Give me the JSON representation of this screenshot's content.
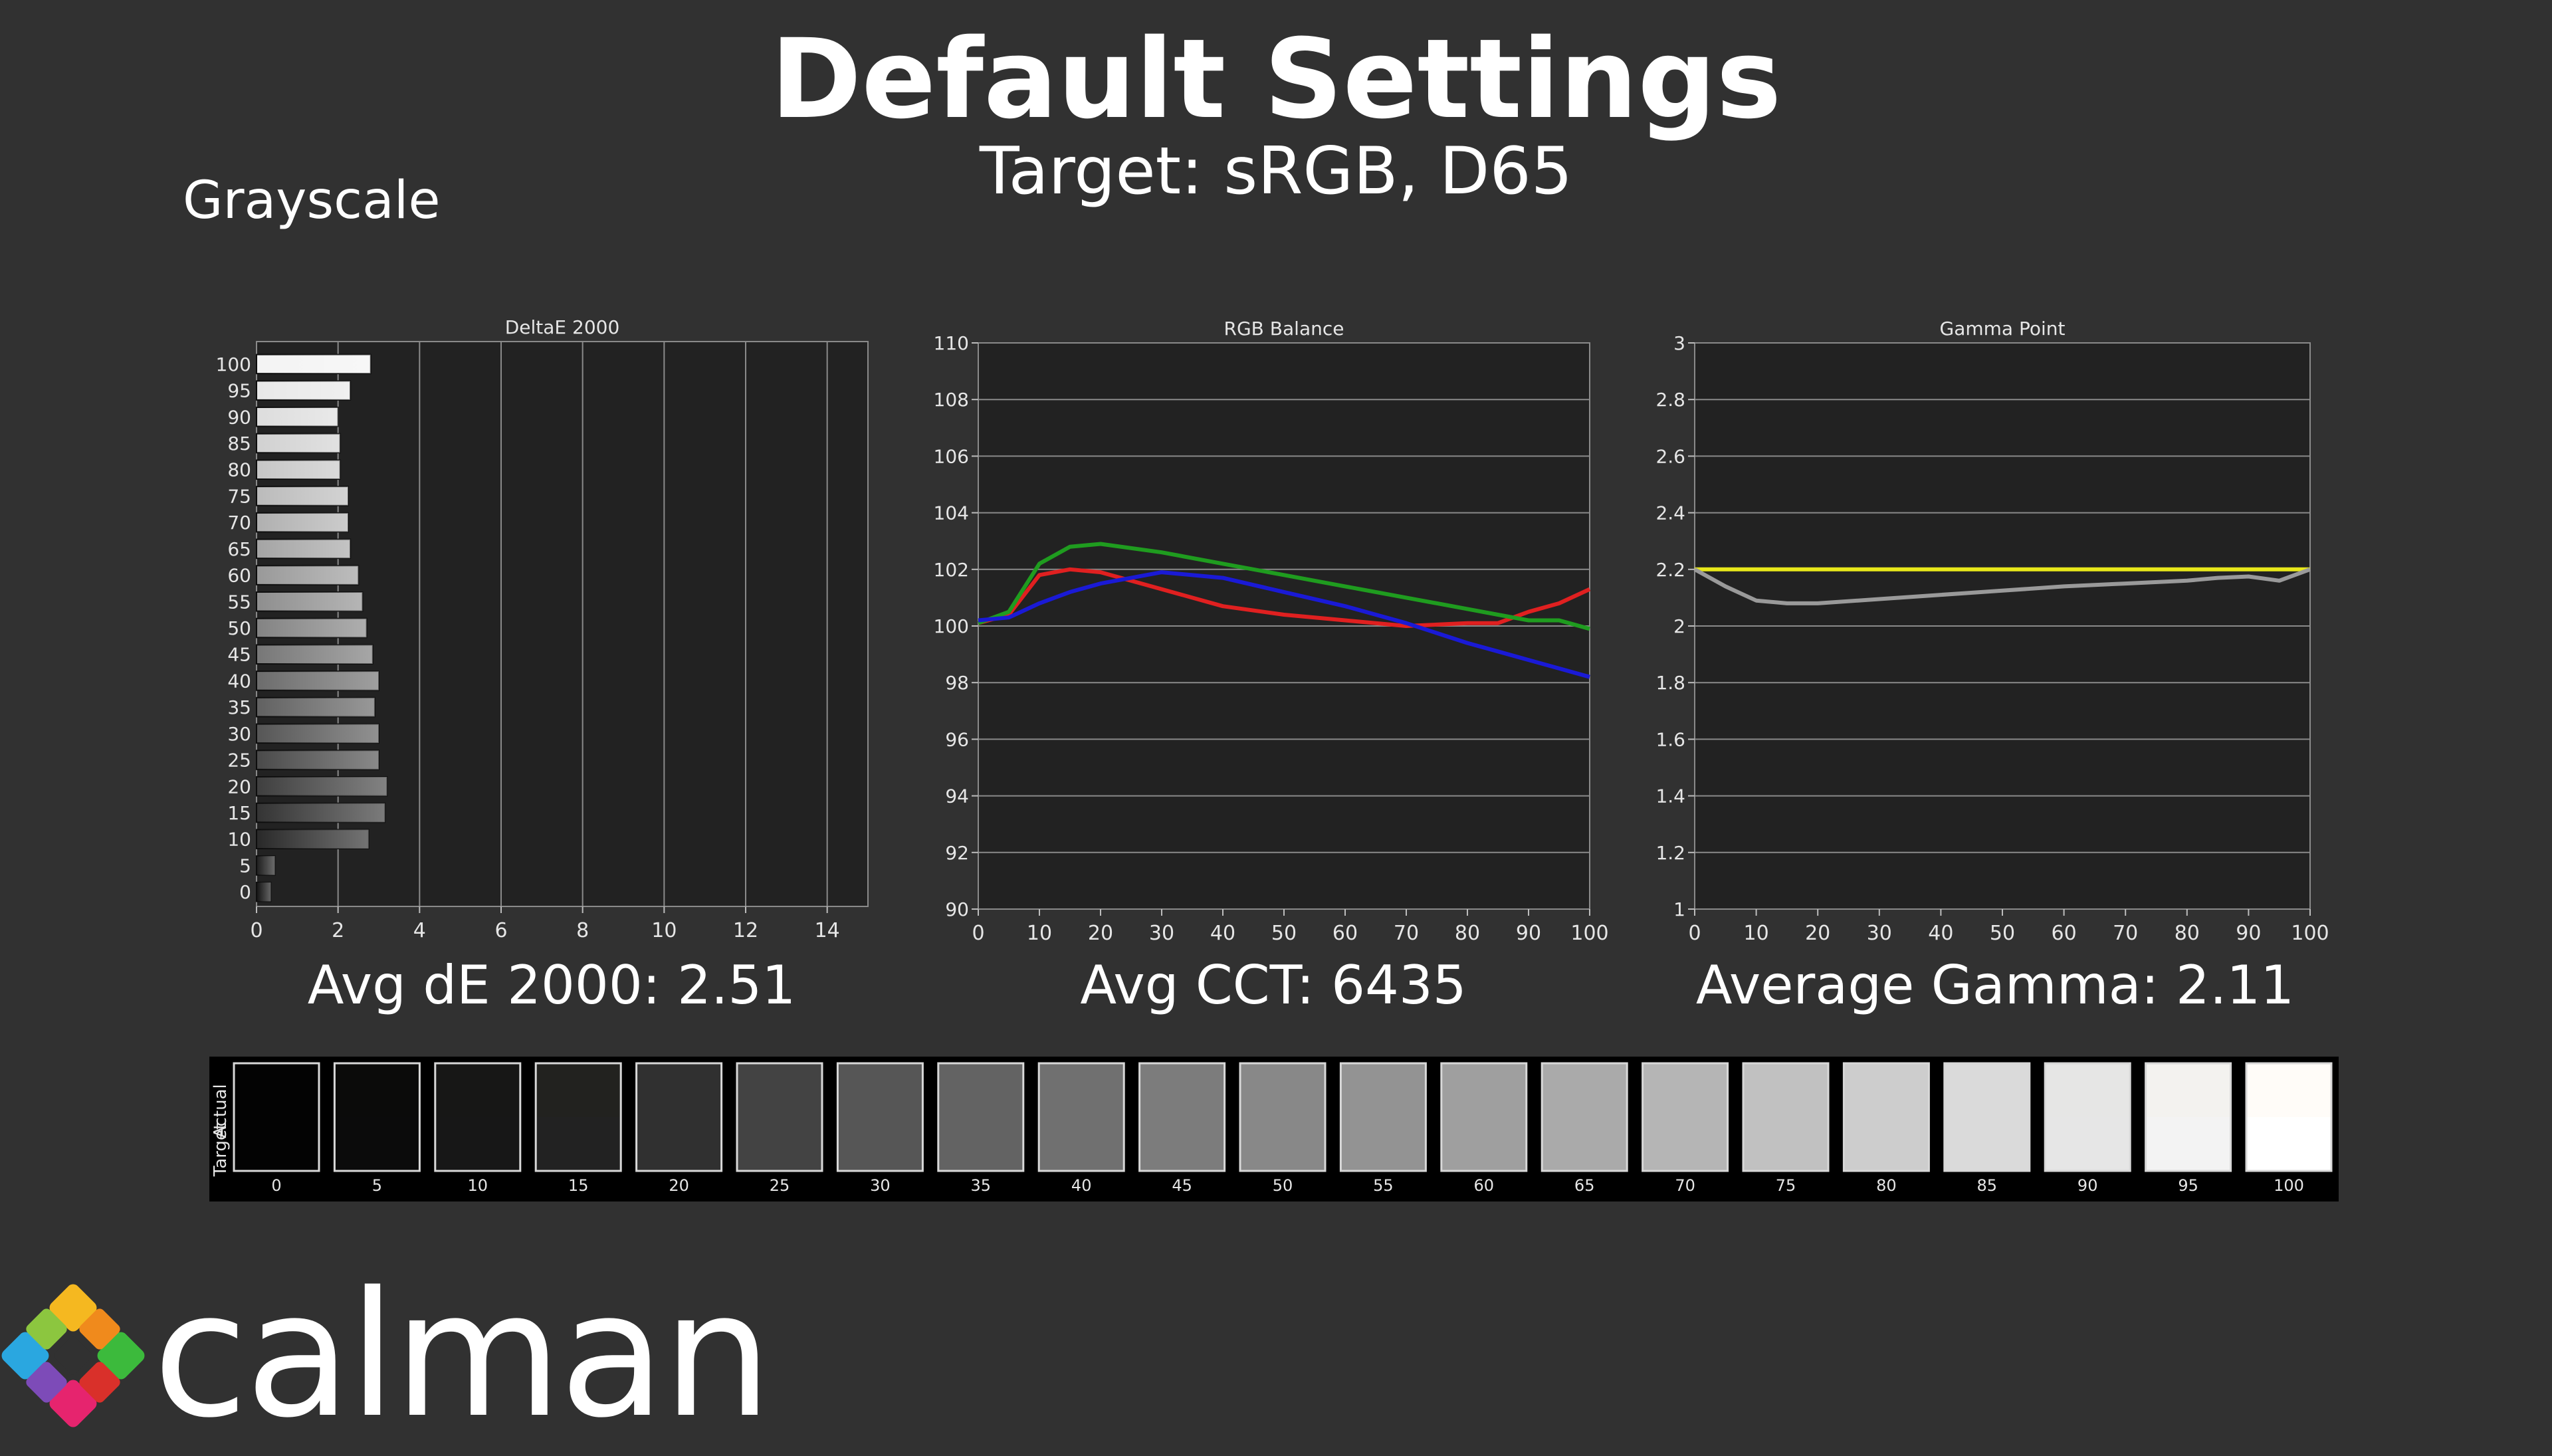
{
  "page": {
    "title": "Default Settings",
    "subtitle": "Target: sRGB, D65",
    "section": "Grayscale",
    "brand": "calman"
  },
  "summary": {
    "deltae": "Avg dE 2000: 2.51",
    "cct": "Avg CCT: 6435",
    "gamma": "Average Gamma: 2.11"
  },
  "colors": {
    "background": "#313131",
    "plot_bg": "#222222",
    "red": "#e02020",
    "green": "#1f9c1f",
    "blue": "#1a1ad6",
    "target_gamma": "#e8e81a",
    "measured_gamma": "#9a9a9a"
  },
  "chart_data": [
    {
      "type": "bar",
      "orientation": "horizontal",
      "title": "DeltaE 2000",
      "categories": [
        "100",
        "95",
        "90",
        "85",
        "80",
        "75",
        "70",
        "65",
        "60",
        "55",
        "50",
        "45",
        "40",
        "35",
        "30",
        "25",
        "20",
        "15",
        "10",
        "5",
        "0"
      ],
      "values": [
        2.8,
        2.3,
        2.0,
        2.05,
        2.05,
        2.25,
        2.25,
        2.3,
        2.5,
        2.6,
        2.7,
        2.85,
        3.0,
        2.9,
        3.0,
        3.0,
        3.2,
        3.15,
        2.75,
        0.45,
        0.35
      ],
      "xlim": [
        0,
        15
      ],
      "xticks": [
        "0",
        "2",
        "4",
        "6",
        "8",
        "10",
        "12",
        "14"
      ],
      "grid": true
    },
    {
      "type": "line",
      "title": "RGB Balance",
      "x": [
        0,
        5,
        10,
        15,
        20,
        30,
        40,
        50,
        60,
        70,
        80,
        85,
        90,
        95,
        100
      ],
      "series": [
        {
          "color": "red",
          "values": [
            100.1,
            100.4,
            101.8,
            102.0,
            101.9,
            101.3,
            100.7,
            100.4,
            100.2,
            100.0,
            100.1,
            100.1,
            100.5,
            100.8,
            101.3
          ]
        },
        {
          "color": "green",
          "values": [
            100.1,
            100.5,
            102.2,
            102.8,
            102.9,
            102.6,
            102.2,
            101.8,
            101.4,
            101.0,
            100.6,
            100.4,
            100.2,
            100.2,
            99.9
          ]
        },
        {
          "color": "blue",
          "values": [
            100.2,
            100.3,
            100.8,
            101.2,
            101.5,
            101.9,
            101.7,
            101.2,
            100.7,
            100.1,
            99.4,
            99.1,
            98.8,
            98.5,
            98.2
          ]
        }
      ],
      "ylim": [
        90,
        110
      ],
      "yticks": [
        "90",
        "92",
        "94",
        "96",
        "98",
        "100",
        "102",
        "104",
        "106",
        "108",
        "110"
      ],
      "xticks": [
        "0",
        "10",
        "20",
        "30",
        "40",
        "50",
        "60",
        "70",
        "80",
        "90",
        "100"
      ],
      "grid": true
    },
    {
      "type": "line",
      "title": "Gamma Point",
      "x": [
        0,
        5,
        10,
        15,
        20,
        30,
        40,
        50,
        60,
        70,
        80,
        85,
        90,
        95,
        100
      ],
      "series": [
        {
          "color": "target",
          "values": [
            2.2,
            2.2,
            2.2,
            2.2,
            2.2,
            2.2,
            2.2,
            2.2,
            2.2,
            2.2,
            2.2,
            2.2,
            2.2,
            2.2,
            2.2
          ]
        },
        {
          "color": "measured",
          "values": [
            2.2,
            2.14,
            2.09,
            2.08,
            2.08,
            2.095,
            2.11,
            2.125,
            2.14,
            2.15,
            2.16,
            2.17,
            2.175,
            2.16,
            2.2
          ]
        }
      ],
      "ylim": [
        1,
        3
      ],
      "yticks": [
        "1",
        "1.2",
        "1.4",
        "1.6",
        "1.8",
        "2",
        "2.2",
        "2.4",
        "2.6",
        "2.8",
        "3"
      ],
      "xticks": [
        "0",
        "10",
        "20",
        "30",
        "40",
        "50",
        "60",
        "70",
        "80",
        "90",
        "100"
      ],
      "grid": true
    },
    {
      "type": "swatches",
      "row_labels": [
        "Actual",
        "Target"
      ],
      "labels": [
        "0",
        "5",
        "10",
        "15",
        "20",
        "25",
        "30",
        "35",
        "40",
        "45",
        "50",
        "55",
        "60",
        "65",
        "70",
        "75",
        "80",
        "85",
        "90",
        "95",
        "100"
      ],
      "actual": [
        "#030303",
        "#0b0b0a",
        "#171716",
        "#22221f",
        "#303030",
        "#434343",
        "#565656",
        "#636363",
        "#707070",
        "#7c7c7c",
        "#888888",
        "#939393",
        "#9f9f9f",
        "#aaaaaa",
        "#b5b5b5",
        "#c1c1c1",
        "#cdcdcd",
        "#dadada",
        "#e6e6e5",
        "#f3f2ef",
        "#fffcf8"
      ],
      "target": [
        "#030303",
        "#0b0b0b",
        "#171717",
        "#222222",
        "#303030",
        "#434343",
        "#565656",
        "#636363",
        "#707070",
        "#7c7c7c",
        "#888888",
        "#939393",
        "#9f9f9f",
        "#aaaaaa",
        "#b5b5b5",
        "#c1c1c1",
        "#cdcdcd",
        "#dadada",
        "#e6e6e6",
        "#f3f3f3",
        "#ffffff"
      ]
    }
  ]
}
